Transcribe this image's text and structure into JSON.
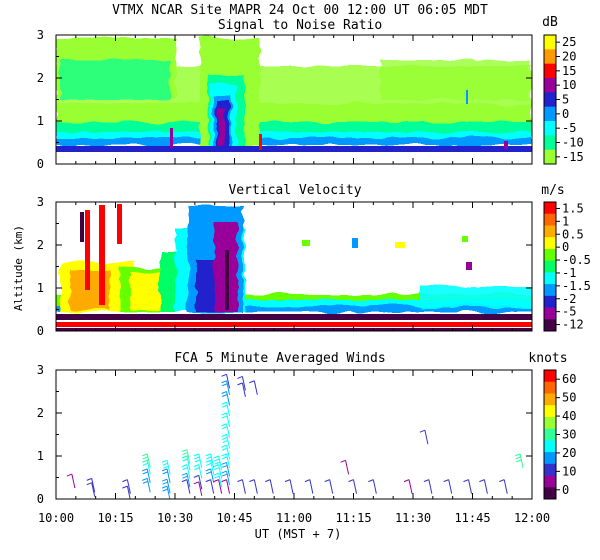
{
  "header": {
    "title": "VTMX  NCAR Site  MAPR 24 Oct 00  12:00 UT  06:05  MDT"
  },
  "x_axis": {
    "ticks": [
      "10:00",
      "10:15",
      "10:30",
      "10:45",
      "11:00",
      "11:15",
      "11:30",
      "11:45",
      "12:00"
    ],
    "minutes": [
      0,
      15,
      30,
      45,
      60,
      75,
      90,
      105,
      120
    ],
    "label": "UT  (MST + 7)"
  },
  "y_axis": {
    "label": "Altitude (km)",
    "ticks": [
      "0",
      "1",
      "2",
      "3"
    ],
    "values": [
      0,
      1,
      2,
      3
    ],
    "range": [
      0,
      3
    ]
  },
  "chart_data": [
    {
      "type": "heatmap",
      "title": "Signal to Noise Ratio",
      "units": "dB",
      "colorbar_ticks": [
        "25",
        "20",
        "15",
        "10",
        "5",
        "0",
        "-5",
        "-10",
        "-15"
      ],
      "colorbar_colors": [
        "#ffff00",
        "#ff9900",
        "#ff0000",
        "#990099",
        "#2222cc",
        "#0099ff",
        "#00ffff",
        "#00ff99",
        "#99ff33"
      ],
      "xlim_minutes": [
        0,
        120
      ],
      "ylim_km": [
        0,
        3
      ],
      "features": {
        "strong_low_layer_blue_km": [
          0.25,
          0.45
        ],
        "intense_column_minute": 43,
        "intense_column_top_km": 1.9
      }
    },
    {
      "type": "heatmap",
      "title": "Vertical Velocity",
      "units": "m/s",
      "colorbar_ticks": [
        "1.5",
        "1",
        "0.5",
        "0",
        "-0.5",
        "-1",
        "-1.5",
        "-2",
        "-5",
        "-12"
      ],
      "colorbar_colors": [
        "#ff0000",
        "#ff6600",
        "#ffaa00",
        "#ffff00",
        "#66ff00",
        "#00ff66",
        "#00ffff",
        "#0099ff",
        "#2222cc",
        "#990099",
        "#440044"
      ],
      "xlim_minutes": [
        0,
        120
      ],
      "ylim_km": [
        0,
        3
      ]
    },
    {
      "type": "scatter",
      "title": "FCA 5 Minute Averaged Winds",
      "units": "knots",
      "colorbar_ticks": [
        "60",
        "50",
        "40",
        "30",
        "20",
        "10",
        "0"
      ],
      "colorbar_colors": [
        "#ff0000",
        "#ff6600",
        "#ffaa00",
        "#ffff00",
        "#99ff33",
        "#33ff99",
        "#00ffff",
        "#0099ff",
        "#3333cc",
        "#990099",
        "#440044"
      ],
      "xlim_minutes": [
        0,
        120
      ],
      "ylim_km": [
        0,
        3
      ],
      "barb_profiles": [
        {
          "t": 4,
          "levels": [
            [
              0.58,
              4
            ]
          ]
        },
        {
          "t": 9,
          "levels": [
            [
              0.48,
              12
            ],
            [
              0.38,
              14
            ]
          ]
        },
        {
          "t": 18,
          "levels": [
            [
              0.45,
              14
            ],
            [
              0.3,
              14
            ]
          ]
        },
        {
          "t": 23,
          "levels": [
            [
              0.48,
              18
            ],
            [
              0.7,
              20
            ],
            [
              0.9,
              22
            ],
            [
              1.05,
              28
            ]
          ]
        },
        {
          "t": 28,
          "levels": [
            [
              0.46,
              16
            ],
            [
              0.3,
              15
            ],
            [
              0.7,
              18
            ],
            [
              0.9,
              25
            ]
          ]
        },
        {
          "t": 33,
          "levels": [
            [
              0.45,
              14
            ],
            [
              0.6,
              20
            ],
            [
              0.8,
              22
            ],
            [
              1.0,
              24
            ],
            [
              1.15,
              28
            ]
          ]
        },
        {
          "t": 36,
          "levels": [
            [
              0.4,
              6
            ],
            [
              0.55,
              12
            ],
            [
              0.8,
              24
            ],
            [
              1.05,
              26
            ]
          ]
        },
        {
          "t": 39,
          "levels": [
            [
              0.45,
              10
            ],
            [
              0.7,
              18
            ],
            [
              0.9,
              22
            ],
            [
              1.05,
              26
            ]
          ]
        },
        {
          "t": 41,
          "levels": [
            [
              0.45,
              8
            ],
            [
              0.6,
              22
            ],
            [
              0.8,
              24
            ],
            [
              1.0,
              26
            ]
          ]
        },
        {
          "t": 43,
          "levels": [
            [
              0.45,
              6
            ],
            [
              0.65,
              18
            ],
            [
              0.85,
              20
            ],
            [
              1.05,
              22
            ],
            [
              1.25,
              24
            ],
            [
              1.5,
              26
            ],
            [
              1.75,
              22
            ],
            [
              2.0,
              22
            ],
            [
              2.25,
              24
            ],
            [
              2.5,
              18
            ],
            [
              2.75,
              16
            ],
            [
              2.9,
              14
            ]
          ]
        },
        {
          "t": 47,
          "levels": [
            [
              0.45,
              14
            ],
            [
              2.85,
              12
            ],
            [
              2.7,
              12
            ]
          ]
        },
        {
          "t": 50,
          "levels": [
            [
              0.45,
              14
            ],
            [
              2.75,
              14
            ]
          ]
        },
        {
          "t": 54,
          "levels": [
            [
              0.45,
              14
            ]
          ]
        },
        {
          "t": 59,
          "levels": [
            [
              0.45,
              14
            ]
          ]
        },
        {
          "t": 64,
          "levels": [
            [
              0.45,
              14
            ]
          ]
        },
        {
          "t": 69,
          "levels": [
            [
              0.45,
              14
            ]
          ]
        },
        {
          "t": 73,
          "levels": [
            [
              0.9,
              8
            ]
          ]
        },
        {
          "t": 75,
          "levels": [
            [
              0.45,
              14
            ]
          ]
        },
        {
          "t": 80,
          "levels": [
            [
              0.45,
              14
            ]
          ]
        },
        {
          "t": 89,
          "levels": [
            [
              0.45,
              8
            ]
          ]
        },
        {
          "t": 93,
          "levels": [
            [
              1.6,
              14
            ]
          ]
        },
        {
          "t": 94,
          "levels": [
            [
              0.45,
              10
            ]
          ]
        },
        {
          "t": 99,
          "levels": [
            [
              0.45,
              14
            ]
          ]
        },
        {
          "t": 104,
          "levels": [
            [
              0.45,
              10
            ]
          ]
        },
        {
          "t": 108,
          "levels": [
            [
              0.45,
              10
            ]
          ]
        },
        {
          "t": 113,
          "levels": [
            [
              0.45,
              10
            ]
          ]
        },
        {
          "t": 117,
          "levels": [
            [
              1.05,
              28
            ]
          ]
        }
      ]
    }
  ]
}
